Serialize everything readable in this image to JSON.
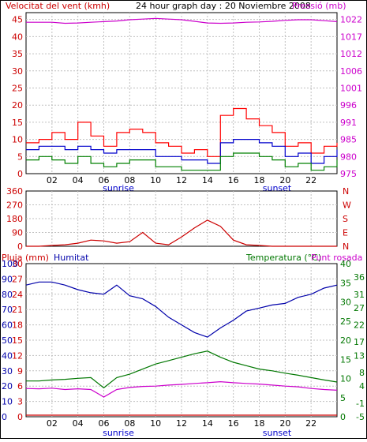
{
  "colors": {
    "frame": "#000000",
    "grid": "#c0c0c0",
    "wind_label": "#cc0000",
    "title": "#000000",
    "pressure": "#cc00cc",
    "gust": "#ff0000",
    "speed_avg": "#0000cc",
    "speed_min": "#008000",
    "direction": "#cc0000",
    "rain": "#cc0000",
    "humidity": "#0000aa",
    "temperature": "#007700",
    "dewpoint": "#cc00cc",
    "sunrise_sunset": "#0000cc"
  },
  "chart_data": [
    {
      "type": "line",
      "title": "24 hour graph day : 20 Noviembre 2008",
      "ylabel_left": "Velocitat del vent (kmh)",
      "ylabel_right": "Pressió (mb)",
      "x_ticks": [
        "02",
        "04",
        "06",
        "08",
        "10",
        "12",
        "14",
        "16",
        "18",
        "20",
        "22"
      ],
      "x_markers": {
        "sunrise": "sunrise",
        "sunset": "sunset"
      },
      "y_ticks_left": [
        "0",
        "5",
        "10",
        "15",
        "20",
        "25",
        "30",
        "35",
        "40",
        "45"
      ],
      "y_ticks_right": [
        "975",
        "980",
        "985",
        "991",
        "996",
        "1001",
        "1006",
        "1012",
        "1017",
        "1022"
      ],
      "ylim_left": [
        0,
        47
      ],
      "ylim_right": [
        975,
        1025
      ],
      "grid": true,
      "x_hours": [
        0,
        1,
        2,
        3,
        4,
        5,
        6,
        7,
        8,
        9,
        10,
        11,
        12,
        13,
        14,
        15,
        16,
        17,
        18,
        19,
        20,
        21,
        22,
        23,
        24
      ],
      "series": [
        {
          "name": "Pressió",
          "axis": "right",
          "values": [
            1022,
            1022,
            1022,
            1021.7,
            1021.8,
            1022,
            1022.2,
            1022.4,
            1022.8,
            1023,
            1023.2,
            1023,
            1022.8,
            1022.3,
            1021.8,
            1021.7,
            1021.8,
            1022,
            1022.1,
            1022.3,
            1022.6,
            1022.8,
            1022.8,
            1022.5,
            1022.2
          ]
        },
        {
          "name": "",
          "axis": "left",
          "values": [
            9,
            10,
            12,
            10,
            15,
            11,
            8,
            12,
            13,
            12,
            9,
            8,
            6,
            7,
            5,
            17,
            19,
            16,
            14,
            12,
            8,
            9,
            6,
            8,
            9
          ]
        },
        {
          "name": "",
          "axis": "left",
          "values": [
            7,
            8,
            8,
            7,
            8,
            7,
            6,
            7,
            7,
            7,
            5,
            5,
            4,
            4,
            3,
            9,
            10,
            10,
            9,
            8,
            5,
            6,
            3,
            5,
            7
          ]
        },
        {
          "name": "",
          "axis": "left",
          "values": [
            4,
            5,
            4,
            3,
            5,
            3,
            2,
            3,
            4,
            4,
            2,
            2,
            1,
            1,
            1,
            5,
            6,
            6,
            5,
            4,
            2,
            3,
            1,
            2,
            4
          ]
        }
      ]
    },
    {
      "type": "line",
      "title": "",
      "y_ticks_left": [
        "0",
        "90",
        "180",
        "270",
        "360"
      ],
      "ylim_left": [
        0,
        360
      ],
      "y_labels_right": [
        "N",
        "W",
        "S",
        "E",
        "N"
      ],
      "grid": true,
      "x_hours": [
        0,
        1,
        2,
        3,
        4,
        5,
        6,
        7,
        8,
        9,
        10,
        11,
        12,
        13,
        14,
        15,
        16,
        17,
        18,
        19,
        20,
        21,
        22,
        23,
        24
      ],
      "series": [
        {
          "name": "",
          "values": [
            0,
            0,
            5,
            10,
            20,
            40,
            35,
            20,
            30,
            90,
            20,
            10,
            60,
            120,
            170,
            130,
            40,
            10,
            5,
            0,
            0,
            0,
            0,
            0,
            0
          ]
        }
      ]
    },
    {
      "type": "line",
      "title": "",
      "ylabel_left_1": "Pluja (mm)",
      "ylabel_left_2": "Humitat",
      "ylabel_right": "Temperatura (°C)",
      "ylabel_right_2": "Punt rosada",
      "x_ticks": [
        "02",
        "04",
        "06",
        "08",
        "10",
        "12",
        "14",
        "16",
        "18",
        "20",
        "22"
      ],
      "x_markers": {
        "sunrise": "sunrise",
        "sunset": "sunset"
      },
      "y_ticks_left_1": [
        "0",
        "3",
        "6",
        "9",
        "12",
        "15",
        "18",
        "21",
        "24",
        "27",
        "30"
      ],
      "y_ticks_left_2": [
        "0",
        "10",
        "20",
        "30",
        "40",
        "50",
        "60",
        "70",
        "80",
        "90",
        "100"
      ],
      "y_ticks_right_1": [
        "0",
        "5",
        "10",
        "15",
        "20",
        "25",
        "30",
        "35",
        "40"
      ],
      "y_ticks_right_2": [
        "-5",
        "-1",
        "4",
        "8",
        "13",
        "17",
        "22",
        "27",
        "31",
        "36"
      ],
      "ylim_humidity": [
        0,
        100
      ],
      "ylim_temperature": [
        -5,
        40
      ],
      "grid": true,
      "x_hours": [
        0,
        1,
        2,
        3,
        4,
        5,
        6,
        7,
        8,
        9,
        10,
        11,
        12,
        13,
        14,
        15,
        16,
        17,
        18,
        19,
        20,
        21,
        22,
        23,
        24
      ],
      "series": [
        {
          "name": "Humitat",
          "axis": "humidity",
          "values": [
            86,
            88,
            88,
            86,
            83,
            81,
            80,
            86,
            79,
            77,
            72,
            65,
            60,
            55,
            52,
            58,
            63,
            69,
            71,
            73,
            74,
            78,
            80,
            84,
            86
          ]
        },
        {
          "name": "Temperatura",
          "axis": "temperature",
          "values": [
            5.5,
            5.5,
            5.8,
            6,
            6.3,
            6.5,
            3.5,
            6.5,
            7.5,
            9,
            10.5,
            11.5,
            12.5,
            13.5,
            14.3,
            12.5,
            11,
            10,
            9,
            8.5,
            7.8,
            7.2,
            6.5,
            5.8,
            5.2
          ]
        },
        {
          "name": "Punt rosada",
          "axis": "temperature",
          "values": [
            3.3,
            3.2,
            3.4,
            3,
            3.2,
            3,
            0.8,
            3,
            3.6,
            3.9,
            4,
            4.3,
            4.5,
            4.8,
            5,
            5.3,
            5,
            4.8,
            4.6,
            4.3,
            4,
            3.8,
            3.3,
            3,
            2.8
          ]
        },
        {
          "name": "Pluja",
          "axis": "rain",
          "values": [
            0,
            0,
            0,
            0,
            0,
            0,
            0,
            0,
            0,
            0,
            0,
            0,
            0,
            0,
            0,
            0,
            0,
            0,
            0,
            0,
            0,
            0,
            0,
            0,
            0
          ]
        }
      ]
    }
  ]
}
